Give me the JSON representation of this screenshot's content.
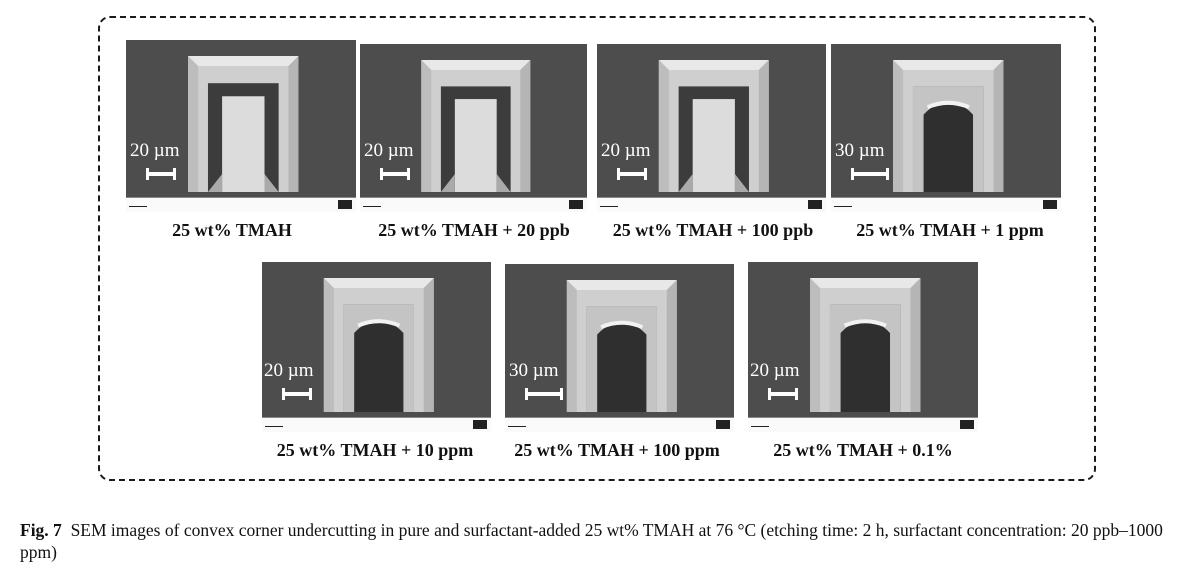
{
  "panels": [
    {
      "scale": "20 µm",
      "caption": "25 wt% TMAH",
      "opening": "rect"
    },
    {
      "scale": "20 µm",
      "caption": "25 wt% TMAH + 20 ppb",
      "opening": "rect"
    },
    {
      "scale": "20 µm",
      "caption": "25 wt% TMAH + 100 ppb",
      "opening": "rect"
    },
    {
      "scale": "30 µm",
      "caption": "25 wt% TMAH + 1 ppm",
      "opening": "arch"
    },
    {
      "scale": "20 µm",
      "caption": "25 wt% TMAH + 10 ppm",
      "opening": "arch"
    },
    {
      "scale": "30 µm",
      "caption": "25 wt% TMAH + 100 ppm",
      "opening": "arch"
    },
    {
      "scale": "20 µm",
      "caption": "25 wt% TMAH + 0.1%",
      "opening": "arch"
    }
  ],
  "figure": {
    "label": "Fig. 7",
    "caption": "SEM images of convex corner undercutting in pure and surfactant-added 25 wt% TMAH at 76 °C (etching time: 2 h, surfactant concentration: 20 ppb–1000 ppm)"
  }
}
